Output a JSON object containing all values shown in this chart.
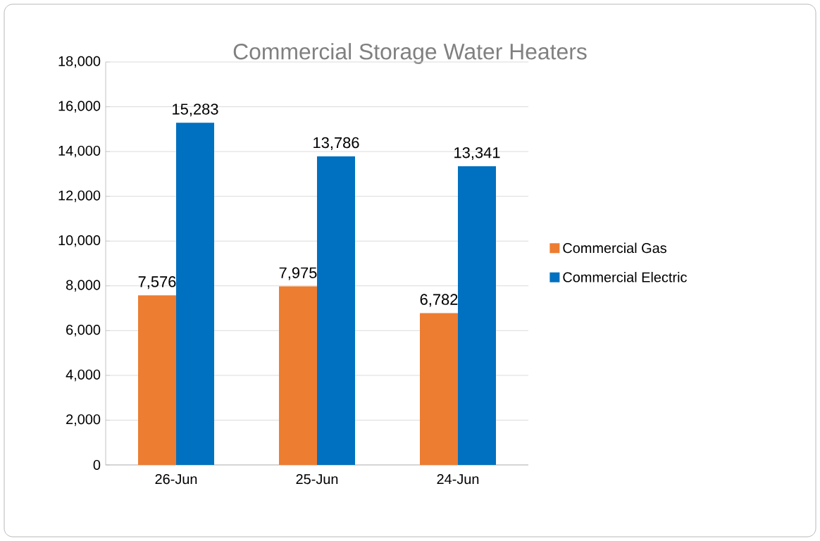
{
  "chart_data": {
    "type": "bar",
    "title": "Commercial Storage Water Heaters",
    "categories": [
      "26-Jun",
      "25-Jun",
      "24-Jun"
    ],
    "series": [
      {
        "name": "Commercial Gas",
        "color": "#ed7d31",
        "values": [
          7576,
          7975,
          6782
        ],
        "value_labels": [
          "7,576",
          "7,975",
          "6,782"
        ]
      },
      {
        "name": "Commercial Electric",
        "color": "#0070c0",
        "values": [
          15283,
          13786,
          13341
        ],
        "value_labels": [
          "15,283",
          "13,786",
          "13,341"
        ]
      }
    ],
    "ylim": [
      0,
      18000
    ],
    "yticks": [
      {
        "value": 0,
        "label": "0"
      },
      {
        "value": 2000,
        "label": "2,000"
      },
      {
        "value": 4000,
        "label": "4,000"
      },
      {
        "value": 6000,
        "label": "6,000"
      },
      {
        "value": 8000,
        "label": "8,000"
      },
      {
        "value": 10000,
        "label": "10,000"
      },
      {
        "value": 12000,
        "label": "12,000"
      },
      {
        "value": 14000,
        "label": "14,000"
      },
      {
        "value": 16000,
        "label": "16,000"
      },
      {
        "value": 18000,
        "label": "18,000"
      }
    ],
    "grid": "y",
    "legend": "right"
  }
}
